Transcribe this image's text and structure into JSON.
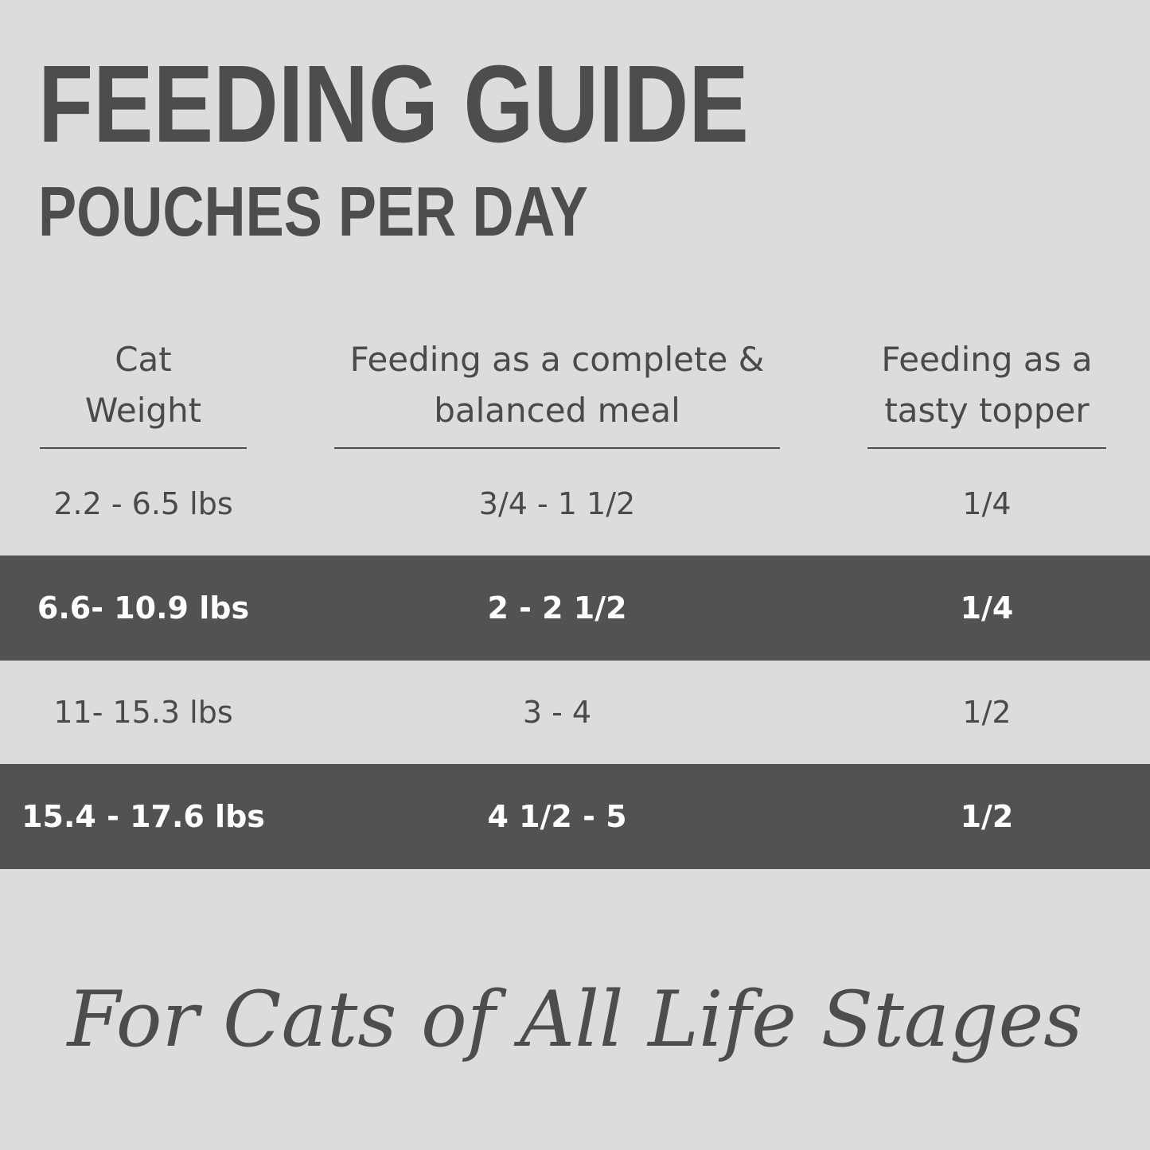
{
  "header": {
    "title": "FEEDING GUIDE",
    "subtitle": "POUCHES PER DAY"
  },
  "table": {
    "columns": [
      [
        "Cat",
        "Weight"
      ],
      [
        "Feeding as a complete &",
        "balanced meal"
      ],
      [
        "Feeding as a",
        "tasty topper"
      ]
    ],
    "rows": [
      [
        "2.2 - 6.5 lbs",
        "3/4 - 1 1/2",
        "1/4"
      ],
      [
        "6.6- 10.9 lbs",
        "2 - 2 1/2",
        "1/4"
      ],
      [
        "11- 15.3 lbs",
        "3 - 4",
        "1/2"
      ],
      [
        "15.4 - 17.6 lbs",
        "4 1/2 - 5",
        "1/2"
      ]
    ]
  },
  "footer": {
    "tagline": "For Cats of All Life Stages"
  }
}
